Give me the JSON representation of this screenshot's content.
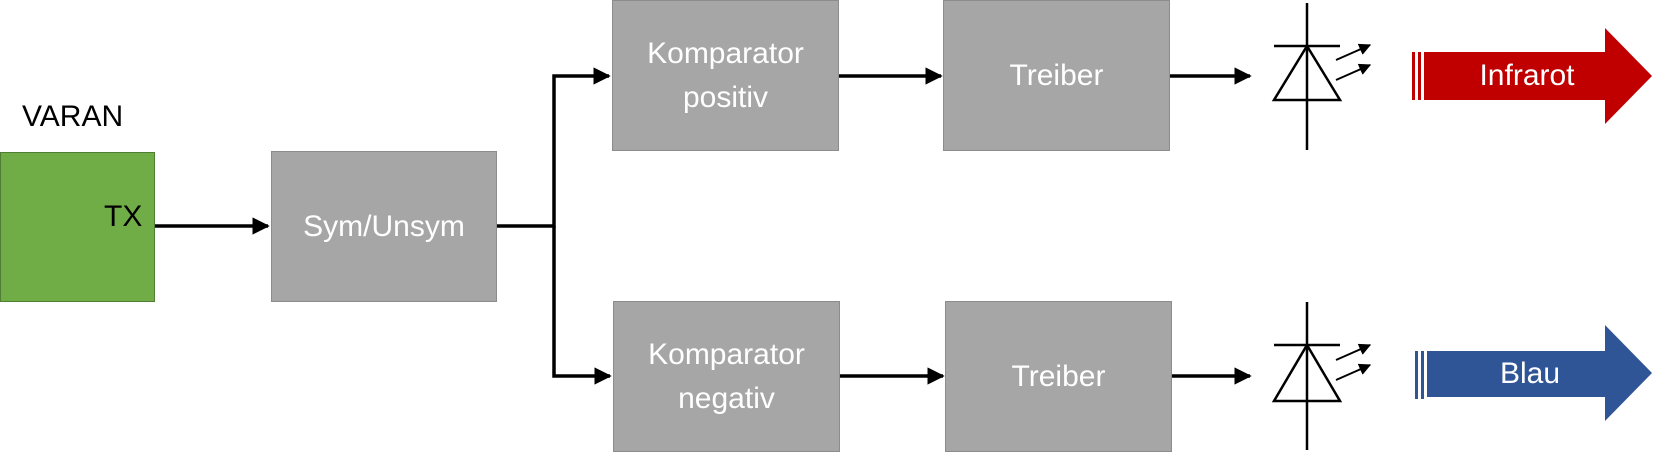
{
  "varan": {
    "title": "VARAN",
    "tx": "TX"
  },
  "blocks": {
    "symunsym": "Sym/Unsym",
    "komparator_pos": "Komparator\npositiv",
    "treiber_top": "Treiber",
    "komparator_neg": "Komparator\nnegativ",
    "treiber_bottom": "Treiber"
  },
  "outputs": {
    "top": {
      "label": "Infrarot",
      "color": "#c00000"
    },
    "bottom": {
      "label": "Blau",
      "color": "#2f5597"
    }
  },
  "colors": {
    "block_fill": "#a6a6a6",
    "varan_fill": "#70ad47",
    "line": "#000000"
  }
}
